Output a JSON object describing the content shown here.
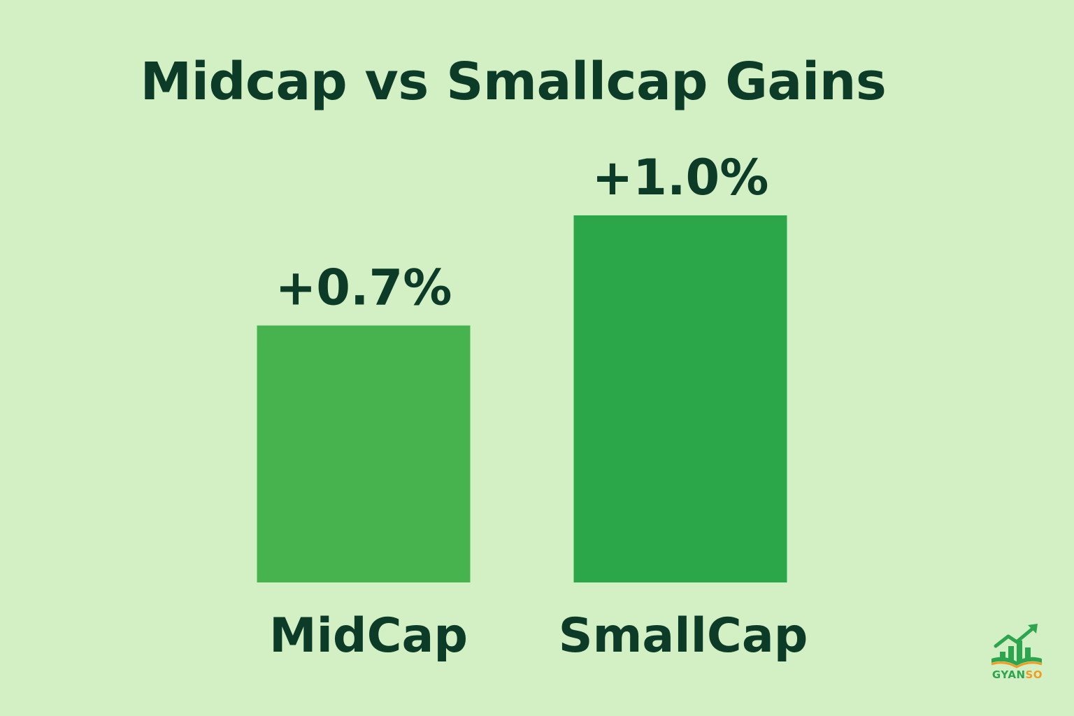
{
  "title": "Midcap vs Smallcap Gains",
  "chart_data": {
    "type": "bar",
    "title": "Midcap vs Smallcap Gains",
    "categories": [
      "MidCap",
      "SmallCap"
    ],
    "values": [
      0.7,
      1.0
    ],
    "value_labels": [
      "+0.7%",
      "+1.0%"
    ],
    "xlabel": "",
    "ylabel": "",
    "ylim": [
      0,
      1.4
    ],
    "grid": false,
    "legend": "none",
    "colors": [
      "#46b34f",
      "#2ba74a"
    ]
  },
  "logo": {
    "text_part1": "GYAN",
    "text_part2": "SO",
    "icon": "growth-chart-book-icon"
  },
  "colors": {
    "background": "#d3f0c4",
    "text": "#0c3b28",
    "accent_green": "#2da44e",
    "accent_orange": "#f39a1f"
  }
}
